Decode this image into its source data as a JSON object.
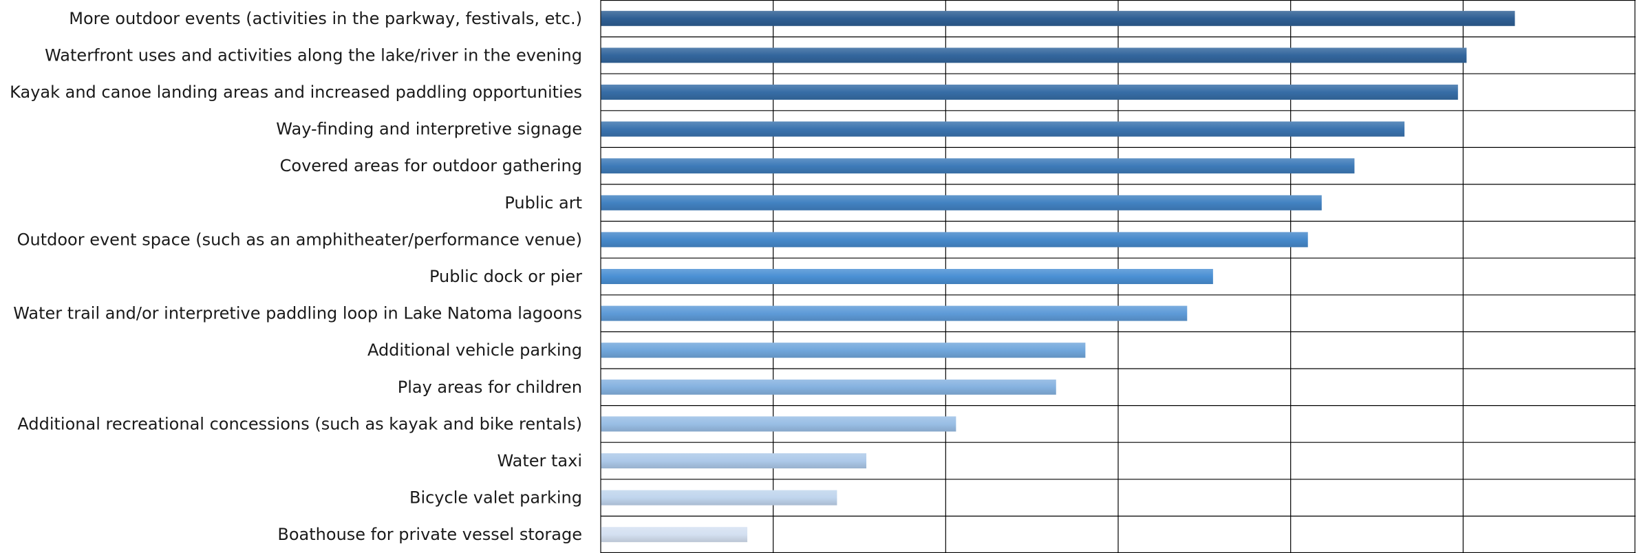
{
  "chart_data": {
    "type": "bar",
    "orientation": "horizontal",
    "categories": [
      "More outdoor events (activities in the parkway, festivals, etc.)",
      "Waterfront uses and activities along the lake/river in the evening",
      "Kayak and canoe landing areas and increased paddling opportunities",
      "Way-finding and interpretive signage",
      "Covered areas for outdoor gathering",
      "Public art",
      "Outdoor event space (such as an amphitheater/performance venue)",
      "Public dock or pier",
      "Water trail and/or interpretive paddling loop in Lake Natoma lagoons",
      "Additional vehicle parking",
      "Play areas for children",
      "Additional recreational concessions (such as kayak and bike rentals)",
      "Water taxi",
      "Bicycle valet parking",
      "Boathouse for private vessel storage"
    ],
    "values": [
      5.3,
      5.02,
      4.97,
      4.66,
      4.37,
      4.18,
      4.1,
      3.55,
      3.4,
      2.81,
      2.64,
      2.06,
      1.54,
      1.37,
      0.85
    ],
    "xlim": [
      0,
      6
    ],
    "x_grid_step": 1,
    "grid": true,
    "show_tick_labels": false,
    "title": "",
    "xlabel": "",
    "ylabel": "",
    "colors": {
      "bar_top": "#2f5f94",
      "bar_bottom": "#d4e0f1",
      "grid": "#000000"
    }
  }
}
